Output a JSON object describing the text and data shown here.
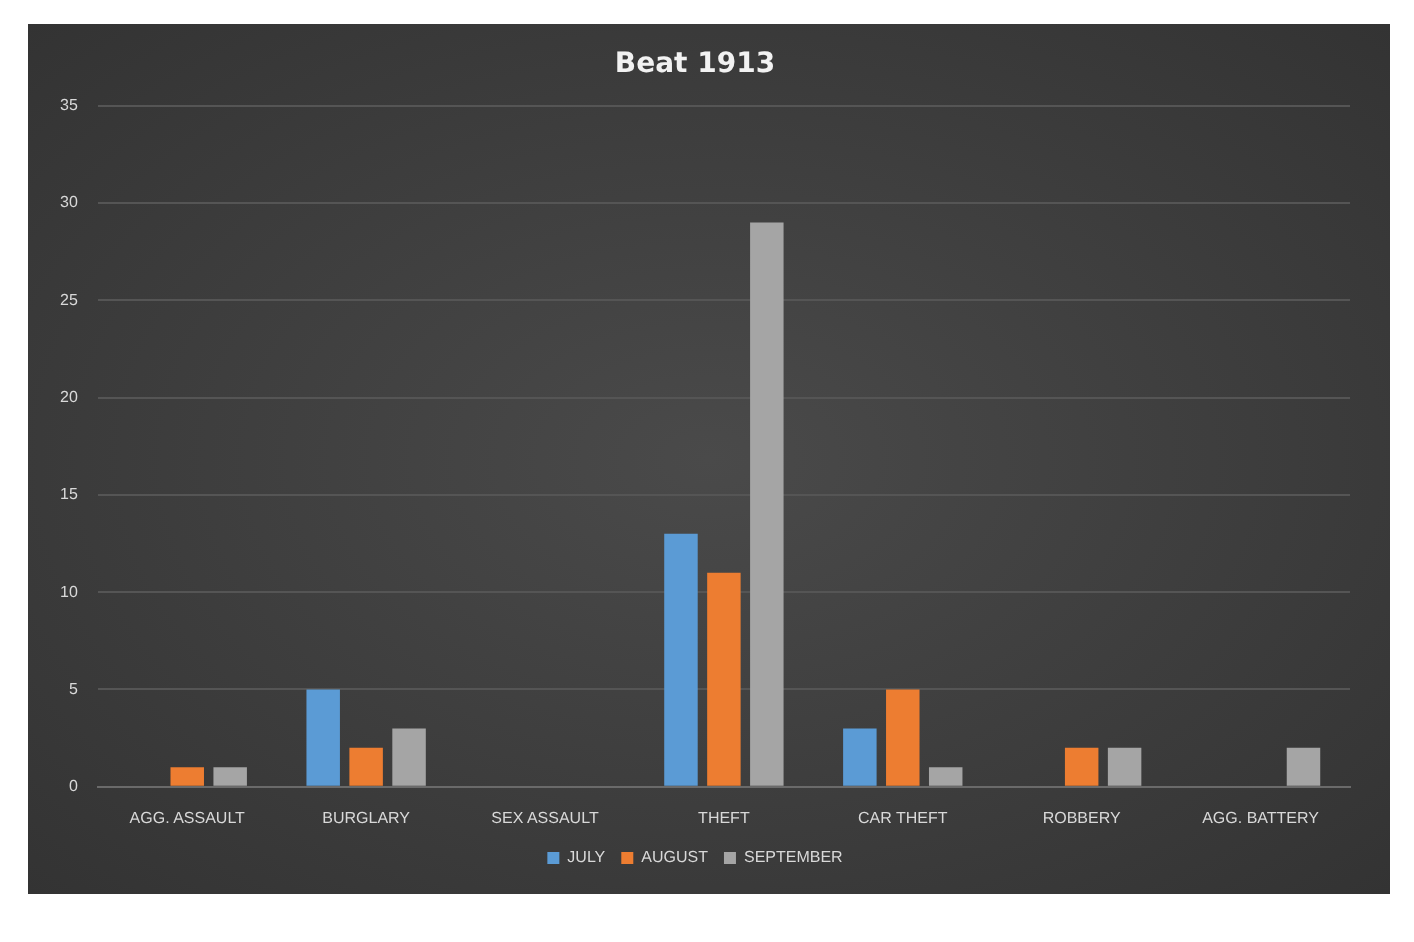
{
  "chart_data": {
    "type": "bar",
    "title": "Beat 1913",
    "categories": [
      "AGG. ASSAULT",
      "BURGLARY",
      "SEX ASSAULT",
      "THEFT",
      "CAR THEFT",
      "ROBBERY",
      "AGG. BATTERY"
    ],
    "series": [
      {
        "name": "JULY",
        "color": "#5b9bd5",
        "values": [
          0,
          5,
          0,
          13,
          3,
          0,
          0
        ]
      },
      {
        "name": "AUGUST",
        "color": "#ed7d31",
        "values": [
          1,
          2,
          0,
          11,
          5,
          2,
          0
        ]
      },
      {
        "name": "SEPTEMBER",
        "color": "#a5a5a5",
        "values": [
          1,
          3,
          0,
          29,
          1,
          2,
          2
        ]
      }
    ],
    "ylim": [
      0,
      35
    ],
    "yticks": [
      0,
      5,
      10,
      15,
      20,
      25,
      30,
      35
    ],
    "grid": "y",
    "legend": "bottom"
  }
}
